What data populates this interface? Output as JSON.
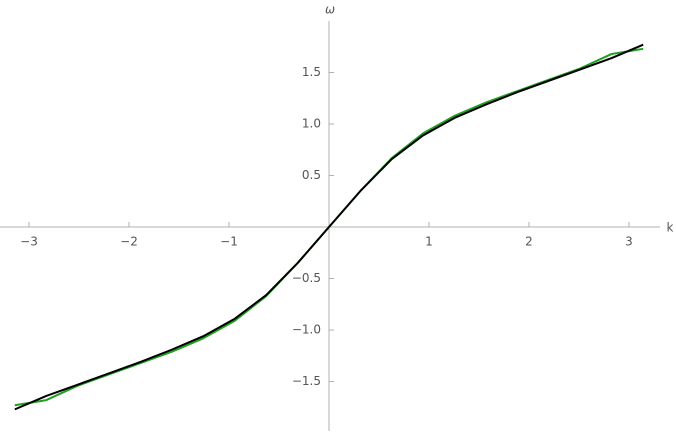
{
  "chart_data": {
    "type": "line",
    "x_label": "k",
    "y_label": "ω",
    "x": [
      -3.142,
      -2.827,
      -2.513,
      -2.199,
      -1.885,
      -1.571,
      -1.257,
      -0.942,
      -0.628,
      -0.314,
      0,
      0.314,
      0.628,
      0.942,
      1.257,
      1.571,
      1.885,
      2.199,
      2.513,
      2.827,
      3.142
    ],
    "series": [
      {
        "name": "green",
        "color": "#1fa01f",
        "values": [
          -1.73,
          -1.68,
          -1.54,
          -1.43,
          -1.32,
          -1.21,
          -1.08,
          -0.91,
          -0.67,
          -0.35,
          0,
          0.35,
          0.67,
          0.91,
          1.08,
          1.21,
          1.32,
          1.43,
          1.54,
          1.68,
          1.73
        ]
      },
      {
        "name": "black",
        "color": "#000000",
        "values": [
          -1.77,
          -1.64,
          -1.53,
          -1.42,
          -1.31,
          -1.19,
          -1.06,
          -0.89,
          -0.66,
          -0.35,
          0,
          0.35,
          0.66,
          0.89,
          1.06,
          1.19,
          1.31,
          1.42,
          1.53,
          1.64,
          1.77
        ]
      }
    ],
    "xlim": [
      -3.29,
      3.31
    ],
    "ylim": [
      -1.98,
      2.0
    ],
    "xticks": [
      {
        "value": -3,
        "label": "−3"
      },
      {
        "value": -2,
        "label": "−2"
      },
      {
        "value": -1,
        "label": "−1"
      },
      1,
      2,
      3
    ],
    "yticks": [
      {
        "value": -1.5,
        "label": "−1.5"
      },
      {
        "value": -1.0,
        "label": "−1.0"
      },
      {
        "value": -0.5,
        "label": "−0.5"
      },
      0.5,
      {
        "value": 1.0,
        "label": "1.0"
      },
      1.5
    ],
    "grid": false
  }
}
